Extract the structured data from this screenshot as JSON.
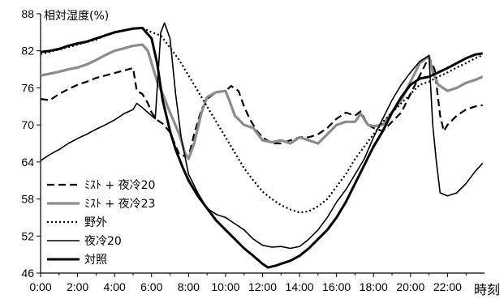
{
  "chart_data": {
    "type": "line",
    "ylabel": "相対湿度(%)",
    "xlabel": "時刻",
    "xlim": [
      0,
      24
    ],
    "ylim": [
      46,
      88
    ],
    "yticks": [
      "46",
      "52",
      "58",
      "64",
      "70",
      "76",
      "82",
      "88"
    ],
    "xticks": [
      "0:00",
      "2:00",
      "4:00",
      "6:00",
      "8:00",
      "10:00",
      "12:00",
      "14:00",
      "16:00",
      "18:00",
      "20:00",
      "22:00"
    ],
    "legend_position": "bottom-left",
    "series": [
      {
        "name": "ﾐｽﾄ + 夜冷20",
        "style": "dashed",
        "color": "#000000",
        "width": 2.2,
        "points": [
          [
            0,
            74.2
          ],
          [
            0.5,
            74.0
          ],
          [
            1,
            75.0
          ],
          [
            1.5,
            75.8
          ],
          [
            2,
            76.5
          ],
          [
            2.5,
            77.0
          ],
          [
            3,
            77.6
          ],
          [
            3.5,
            78.0
          ],
          [
            4,
            78.4
          ],
          [
            4.5,
            78.8
          ],
          [
            5,
            79.2
          ],
          [
            5.2,
            75.5
          ],
          [
            5.5,
            75.0
          ],
          [
            5.8,
            73.5
          ],
          [
            6,
            72.0
          ],
          [
            6.3,
            70.8
          ],
          [
            6.6,
            70.2
          ],
          [
            7,
            68.8
          ],
          [
            7.5,
            65.2
          ],
          [
            8,
            64.8
          ],
          [
            8.3,
            68.5
          ],
          [
            8.7,
            72.5
          ],
          [
            9,
            74.2
          ],
          [
            9.5,
            75.3
          ],
          [
            10,
            75.5
          ],
          [
            10.3,
            76.3
          ],
          [
            10.7,
            75.5
          ],
          [
            11,
            73.0
          ],
          [
            11.3,
            71.0
          ],
          [
            11.7,
            69.0
          ],
          [
            12,
            68.0
          ],
          [
            12.5,
            67.0
          ],
          [
            13,
            67.0
          ],
          [
            13.5,
            67.5
          ],
          [
            14,
            68.0
          ],
          [
            14.5,
            68.0
          ],
          [
            15,
            68.5
          ],
          [
            15.5,
            69.5
          ],
          [
            16,
            71.0
          ],
          [
            16.5,
            72.0
          ],
          [
            17,
            71.5
          ],
          [
            17.3,
            72.2
          ],
          [
            17.7,
            70.0
          ],
          [
            18,
            69.5
          ],
          [
            18.5,
            69.0
          ],
          [
            19,
            70.5
          ],
          [
            19.5,
            72.0
          ],
          [
            20,
            75.0
          ],
          [
            20.5,
            78.0
          ],
          [
            21,
            81.0
          ],
          [
            21.3,
            79.0
          ],
          [
            21.6,
            71.5
          ],
          [
            21.8,
            69.0
          ],
          [
            22,
            70.0
          ],
          [
            22.5,
            71.5
          ],
          [
            23,
            72.5
          ],
          [
            23.5,
            73.0
          ],
          [
            23.9,
            73.2
          ]
        ]
      },
      {
        "name": "ﾐｽﾄ + 夜冷23",
        "style": "solid",
        "color": "#8c8c8c",
        "width": 3.2,
        "points": [
          [
            0,
            78.0
          ],
          [
            0.5,
            78.3
          ],
          [
            1,
            78.6
          ],
          [
            1.5,
            79.0
          ],
          [
            2,
            79.3
          ],
          [
            2.5,
            79.8
          ],
          [
            3,
            80.5
          ],
          [
            3.5,
            81.3
          ],
          [
            4,
            82.0
          ],
          [
            4.5,
            82.4
          ],
          [
            5,
            82.8
          ],
          [
            5.5,
            83.0
          ],
          [
            5.8,
            82.0
          ],
          [
            6,
            80.0
          ],
          [
            6.3,
            77.0
          ],
          [
            6.6,
            75.0
          ],
          [
            7,
            72.0
          ],
          [
            7.5,
            68.5
          ],
          [
            7.8,
            65.5
          ],
          [
            8,
            64.5
          ],
          [
            8.3,
            67.0
          ],
          [
            8.7,
            72.0
          ],
          [
            9,
            74.5
          ],
          [
            9.5,
            75.3
          ],
          [
            10,
            75.5
          ],
          [
            10.2,
            74.0
          ],
          [
            10.5,
            71.5
          ],
          [
            11,
            70.0
          ],
          [
            11.5,
            69.5
          ],
          [
            12,
            67.5
          ],
          [
            12.5,
            67.2
          ],
          [
            13,
            67.5
          ],
          [
            13.5,
            67.0
          ],
          [
            14,
            68.0
          ],
          [
            14.5,
            67.5
          ],
          [
            15,
            67.0
          ],
          [
            15.5,
            68.5
          ],
          [
            16,
            70.0
          ],
          [
            16.5,
            70.5
          ],
          [
            17,
            70.5
          ],
          [
            17.3,
            71.8
          ],
          [
            17.7,
            70.0
          ],
          [
            18,
            69.8
          ],
          [
            18.5,
            70.0
          ],
          [
            19,
            72.0
          ],
          [
            19.5,
            74.0
          ],
          [
            20,
            77.0
          ],
          [
            20.5,
            80.0
          ],
          [
            21,
            81.2
          ],
          [
            21.2,
            78.5
          ],
          [
            21.5,
            76.5
          ],
          [
            22,
            75.5
          ],
          [
            22.5,
            76.0
          ],
          [
            23,
            76.8
          ],
          [
            23.5,
            77.3
          ],
          [
            23.9,
            77.8
          ]
        ]
      },
      {
        "name": "野外",
        "style": "dotted",
        "color": "#000000",
        "width": 2.2,
        "points": [
          [
            0,
            81.5
          ],
          [
            0.5,
            81.8
          ],
          [
            1,
            82.2
          ],
          [
            1.5,
            82.6
          ],
          [
            2,
            83.0
          ],
          [
            2.5,
            83.4
          ],
          [
            3,
            83.8
          ],
          [
            3.5,
            84.5
          ],
          [
            4,
            85.0
          ],
          [
            4.5,
            85.3
          ],
          [
            5,
            85.6
          ],
          [
            5.5,
            85.7
          ],
          [
            6,
            85.0
          ],
          [
            6.5,
            84.5
          ],
          [
            7,
            82.5
          ],
          [
            7.5,
            80.5
          ],
          [
            8,
            78.0
          ],
          [
            8.5,
            75.5
          ],
          [
            9,
            73.0
          ],
          [
            9.5,
            70.5
          ],
          [
            10,
            68.0
          ],
          [
            10.5,
            65.5
          ],
          [
            11,
            63.0
          ],
          [
            11.5,
            61.0
          ],
          [
            12,
            59.2
          ],
          [
            12.5,
            58.0
          ],
          [
            13,
            57.0
          ],
          [
            13.5,
            56.3
          ],
          [
            14,
            55.8
          ],
          [
            14.5,
            56.0
          ],
          [
            15,
            56.8
          ],
          [
            15.5,
            58.0
          ],
          [
            16,
            60.0
          ],
          [
            16.5,
            62.0
          ],
          [
            17,
            64.5
          ],
          [
            17.5,
            66.5
          ],
          [
            18,
            68.5
          ],
          [
            18.5,
            70.5
          ],
          [
            19,
            72.0
          ],
          [
            19.5,
            73.5
          ],
          [
            20,
            75.0
          ],
          [
            20.5,
            76.5
          ],
          [
            21,
            77.0
          ],
          [
            21.5,
            77.8
          ],
          [
            22,
            78.5
          ],
          [
            22.5,
            79.3
          ],
          [
            23,
            80.0
          ],
          [
            23.5,
            80.8
          ],
          [
            23.9,
            81.3
          ]
        ]
      },
      {
        "name": "夜冷20",
        "style": "solid",
        "color": "#000000",
        "width": 1.6,
        "points": [
          [
            0,
            64.2
          ],
          [
            0.5,
            65.2
          ],
          [
            1,
            66.0
          ],
          [
            1.5,
            67.0
          ],
          [
            2,
            67.8
          ],
          [
            2.5,
            68.5
          ],
          [
            3,
            69.3
          ],
          [
            3.5,
            70.0
          ],
          [
            4,
            70.8
          ],
          [
            4.5,
            71.8
          ],
          [
            5,
            72.5
          ],
          [
            5.2,
            73.5
          ],
          [
            5.5,
            72.8
          ],
          [
            5.8,
            72.0
          ],
          [
            6,
            71.5
          ],
          [
            6.2,
            71.0
          ],
          [
            6.5,
            85.0
          ],
          [
            6.7,
            86.5
          ],
          [
            7,
            84.0
          ],
          [
            7.3,
            75.0
          ],
          [
            7.6,
            68.0
          ],
          [
            8,
            62.0
          ],
          [
            8.5,
            59.0
          ],
          [
            9,
            56.5
          ],
          [
            9.5,
            55.5
          ],
          [
            10,
            55.0
          ],
          [
            10.5,
            54.0
          ],
          [
            11,
            53.0
          ],
          [
            11.5,
            51.5
          ],
          [
            12,
            50.5
          ],
          [
            12.5,
            50.2
          ],
          [
            13,
            50.3
          ],
          [
            13.5,
            50.0
          ],
          [
            14,
            50.3
          ],
          [
            14.5,
            51.5
          ],
          [
            15,
            53.0
          ],
          [
            15.5,
            55.0
          ],
          [
            16,
            57.5
          ],
          [
            16.5,
            59.5
          ],
          [
            17,
            62.0
          ],
          [
            17.5,
            64.5
          ],
          [
            18,
            68.0
          ],
          [
            18.5,
            71.0
          ],
          [
            19,
            74.0
          ],
          [
            19.5,
            76.5
          ],
          [
            20,
            78.5
          ],
          [
            20.5,
            80.3
          ],
          [
            21,
            81.2
          ],
          [
            21.2,
            70.0
          ],
          [
            21.4,
            64.0
          ],
          [
            21.6,
            59.0
          ],
          [
            22,
            58.5
          ],
          [
            22.5,
            59.0
          ],
          [
            23,
            60.5
          ],
          [
            23.5,
            62.5
          ],
          [
            23.9,
            63.8
          ]
        ]
      },
      {
        "name": "対照",
        "style": "solid",
        "color": "#000000",
        "width": 3.0,
        "points": [
          [
            0,
            81.8
          ],
          [
            0.5,
            82.0
          ],
          [
            1,
            82.3
          ],
          [
            1.5,
            82.8
          ],
          [
            2,
            83.2
          ],
          [
            2.5,
            83.5
          ],
          [
            3,
            84.0
          ],
          [
            3.5,
            84.5
          ],
          [
            4,
            85.0
          ],
          [
            4.5,
            85.3
          ],
          [
            5,
            85.6
          ],
          [
            5.5,
            85.7
          ],
          [
            6,
            84.0
          ],
          [
            6.3,
            80.0
          ],
          [
            6.6,
            74.0
          ],
          [
            7,
            69.0
          ],
          [
            7.3,
            66.0
          ],
          [
            7.7,
            63.0
          ],
          [
            8,
            61.0
          ],
          [
            8.5,
            58.5
          ],
          [
            9,
            56.5
          ],
          [
            9.5,
            54.5
          ],
          [
            10,
            53.0
          ],
          [
            10.5,
            51.5
          ],
          [
            11,
            50.0
          ],
          [
            11.5,
            48.8
          ],
          [
            12,
            47.5
          ],
          [
            12.3,
            46.9
          ],
          [
            12.7,
            47.2
          ],
          [
            13,
            47.5
          ],
          [
            13.5,
            48.0
          ],
          [
            14,
            48.8
          ],
          [
            14.5,
            50.0
          ],
          [
            15,
            51.5
          ],
          [
            15.5,
            53.0
          ],
          [
            16,
            55.0
          ],
          [
            16.5,
            57.5
          ],
          [
            17,
            60.5
          ],
          [
            17.5,
            63.5
          ],
          [
            18,
            66.5
          ],
          [
            18.5,
            69.0
          ],
          [
            19,
            72.0
          ],
          [
            19.5,
            74.5
          ],
          [
            20,
            76.5
          ],
          [
            20.5,
            77.5
          ],
          [
            21,
            77.8
          ],
          [
            21.5,
            78.5
          ],
          [
            22,
            79.2
          ],
          [
            22.5,
            80.0
          ],
          [
            23,
            80.8
          ],
          [
            23.5,
            81.4
          ],
          [
            23.9,
            81.6
          ]
        ]
      }
    ]
  }
}
